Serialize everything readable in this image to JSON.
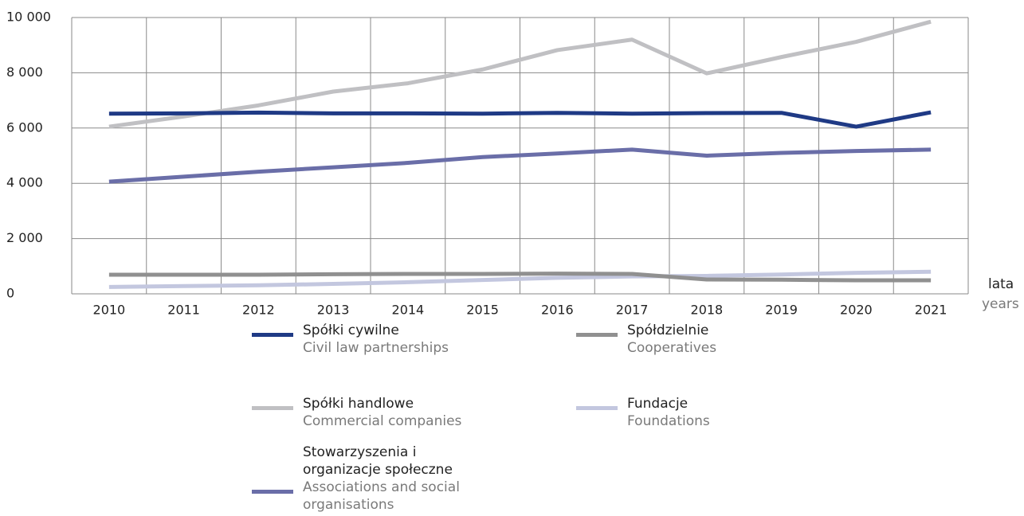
{
  "chart_data": {
    "type": "line",
    "x_label": "lata",
    "x_label_en": "years",
    "categories": [
      "2010",
      "2011",
      "2012",
      "2013",
      "2014",
      "2015",
      "2016",
      "2017",
      "2018",
      "2019",
      "2020",
      "2021"
    ],
    "ylim": [
      0,
      10000
    ],
    "yticks": [
      0,
      {
        "value": 2000,
        "label": "2 000"
      },
      {
        "value": 4000,
        "label": "4 000"
      },
      {
        "value": 6000,
        "label": "6 000"
      },
      {
        "value": 8000,
        "label": "8 000"
      },
      {
        "value": 10000,
        "label": "10 000"
      }
    ],
    "grid": true,
    "series": [
      {
        "name": "Spółki cywilne",
        "name_en": "Civil law partnerships",
        "color": "#1f3a85",
        "values": [
          6520,
          6530,
          6560,
          6530,
          6530,
          6520,
          6550,
          6520,
          6540,
          6550,
          6050,
          6570
        ]
      },
      {
        "name": "Spółki handlowe",
        "name_en": "Commercial companies",
        "color": "#c0c0c3",
        "values": [
          6050,
          6420,
          6820,
          7320,
          7620,
          8120,
          8820,
          9200,
          7980,
          8570,
          9120,
          9850
        ]
      },
      {
        "name": "Stowarzyszenia i organizacje społeczne",
        "name_en": "Associations and social organisations",
        "color": "#6a6ea8",
        "values": [
          4060,
          4240,
          4420,
          4580,
          4740,
          4950,
          5080,
          5220,
          5000,
          5100,
          5170,
          5220
        ]
      },
      {
        "name": "Spółdzielnie",
        "name_en": "Cooperatives",
        "color": "#909090",
        "values": [
          690,
          690,
          690,
          710,
          720,
          720,
          730,
          720,
          520,
          510,
          490,
          490
        ]
      },
      {
        "name": "Fundacje",
        "name_en": "Foundations",
        "color": "#c3c7df",
        "values": [
          250,
          280,
          310,
          360,
          420,
          500,
          580,
          630,
          650,
          700,
          760,
          800
        ]
      }
    ]
  }
}
